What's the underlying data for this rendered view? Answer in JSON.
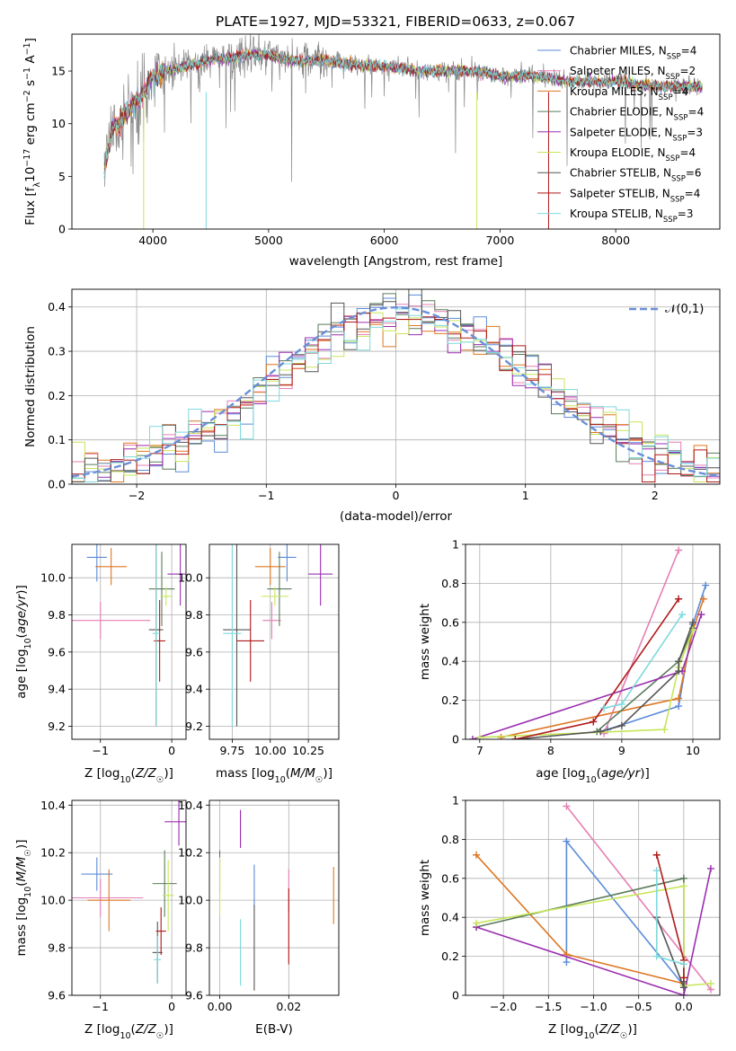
{
  "figure_title": "PLATE=1927, MJD=53321, FIBERID=0633, z=0.067",
  "colors": {
    "Chabrier MILES": "#5b8bd9",
    "Salpeter MILES": "#e67fb4",
    "Kroupa MILES": "#dd7722",
    "Chabrier ELODIE": "#5a7a5a",
    "Salpeter ELODIE": "#9a2fb0",
    "Kroupa ELODIE": "#c7e65a",
    "Chabrier STELIB": "#555555",
    "Salpeter STELIB": "#b01818",
    "Kroupa STELIB": "#7fd9dd",
    "data": "#888888",
    "normal": "#6a8fd8"
  },
  "chart_data": [
    {
      "id": "spectrum",
      "type": "line",
      "xlabel": "wavelength [Angstrom, rest frame]",
      "ylabel": "Flux [f_λ10^-17 erg cm^-2 s^-1 A^-1]",
      "xlim": [
        3300,
        8900
      ],
      "ylim": [
        0,
        18.5
      ],
      "xticks": [
        4000,
        5000,
        6000,
        7000,
        8000
      ],
      "yticks": [
        0,
        5,
        10,
        15
      ],
      "legend_position": "right",
      "legend": [
        {
          "name": "Chabrier MILES",
          "nssp": "4"
        },
        {
          "name": "Salpeter MILES",
          "nssp": "2"
        },
        {
          "name": "Kroupa MILES",
          "nssp": "4"
        },
        {
          "name": "Chabrier ELODIE",
          "nssp": "4"
        },
        {
          "name": "Salpeter ELODIE",
          "nssp": "3"
        },
        {
          "name": "Kroupa ELODIE",
          "nssp": "4"
        },
        {
          "name": "Chabrier STELIB",
          "nssp": "6"
        },
        {
          "name": "Salpeter STELIB",
          "nssp": "4"
        },
        {
          "name": "Kroupa STELIB",
          "nssp": "3"
        }
      ],
      "continuum": {
        "x": [
          3580,
          3650,
          3700,
          3800,
          3900,
          4000,
          4100,
          4300,
          4500,
          4800,
          5000,
          5200,
          5500,
          5800,
          6000,
          6300,
          6500,
          6800,
          7000,
          7300,
          7600,
          8000,
          8400,
          8700
        ],
        "y": [
          5.5,
          9.5,
          10,
          11.5,
          12.5,
          14.5,
          15,
          15.5,
          16,
          16.5,
          16.5,
          16,
          16,
          15.5,
          15.5,
          15,
          15,
          15,
          14.5,
          14.5,
          14,
          14,
          13.5,
          13.5
        ]
      },
      "model_range": [
        3580,
        8750
      ]
    },
    {
      "id": "residuals",
      "type": "line",
      "xlabel": "(data-model)/error",
      "ylabel": "Normed distribution",
      "xlim": [
        -2.5,
        2.5
      ],
      "ylim": [
        0,
        0.44
      ],
      "xticks": [
        -2,
        -1,
        0,
        1,
        2
      ],
      "yticks": [
        0.0,
        0.1,
        0.2,
        0.3,
        0.4
      ],
      "legend": "𝒩(0,1)",
      "legend_position": "top-right",
      "normal": {
        "mu": 0,
        "sigma": 1
      },
      "bin_width": 0.1,
      "hist_center_offset": 0.1,
      "hist_extra_width": 1.1
    },
    {
      "id": "age-vs-Z",
      "type": "scatter",
      "xlabel": "Z [log10(Z/Z☉)]",
      "ylabel": "age  [log10(age/yr)]",
      "xlim": [
        -1.4,
        0.2
      ],
      "ylim": [
        9.13,
        10.18
      ],
      "xticks": [
        -1,
        0
      ],
      "yticks": [
        9.2,
        9.4,
        9.6,
        9.8,
        10.0
      ],
      "points": [
        {
          "model": "Chabrier MILES",
          "x": -1.05,
          "y": 10.11,
          "xerr": 0.14,
          "yerr": 0.13
        },
        {
          "model": "Salpeter MILES",
          "x": -1.0,
          "y": 9.77,
          "xerr": 0.7,
          "yerr": 0.1
        },
        {
          "model": "Kroupa MILES",
          "x": -0.85,
          "y": 10.06,
          "xerr": 0.22,
          "yerr": 0.1
        },
        {
          "model": "Chabrier ELODIE",
          "x": -0.14,
          "y": 9.94,
          "xerr": 0.18,
          "yerr": 0.2
        },
        {
          "model": "Salpeter ELODIE",
          "x": 0.12,
          "y": 10.02,
          "xerr": 0.18,
          "yerr": 0.17
        },
        {
          "model": "Kroupa ELODIE",
          "x": -0.08,
          "y": 9.9,
          "xerr": 0.08,
          "yerr": 0.05
        },
        {
          "model": "Chabrier STELIB",
          "x": -0.22,
          "y": 9.72,
          "xerr": 0.1,
          "yerr": 0.52
        },
        {
          "model": "Salpeter STELIB",
          "x": -0.17,
          "y": 9.66,
          "xerr": 0.08,
          "yerr": 0.22
        },
        {
          "model": "Kroupa STELIB",
          "x": -0.22,
          "y": 9.7,
          "xerr": 0.05,
          "yerr": 0.5
        }
      ]
    },
    {
      "id": "age-vs-mass",
      "type": "scatter",
      "xlabel": "mass [log10(M/M☉)]",
      "ylabel": "",
      "xlim": [
        9.6,
        10.45
      ],
      "ylim": [
        9.13,
        10.18
      ],
      "xticks": [
        9.75,
        10.0,
        10.25
      ],
      "xticklabels": [
        "9.75",
        "10.00",
        "10.25"
      ],
      "yticks": [
        9.2,
        9.4,
        9.6,
        9.8,
        10.0
      ],
      "points": [
        {
          "model": "Chabrier MILES",
          "x": 10.11,
          "y": 10.11,
          "xerr": 0.06,
          "yerr": 0.13
        },
        {
          "model": "Salpeter MILES",
          "x": 10.01,
          "y": 9.77,
          "xerr": 0.06,
          "yerr": 0.1
        },
        {
          "model": "Kroupa MILES",
          "x": 10.0,
          "y": 10.06,
          "xerr": 0.1,
          "yerr": 0.1
        },
        {
          "model": "Chabrier ELODIE",
          "x": 10.06,
          "y": 9.94,
          "xerr": 0.08,
          "yerr": 0.2
        },
        {
          "model": "Salpeter ELODIE",
          "x": 10.33,
          "y": 10.02,
          "xerr": 0.08,
          "yerr": 0.17
        },
        {
          "model": "Kroupa ELODIE",
          "x": 10.03,
          "y": 9.9,
          "xerr": 0.09,
          "yerr": 0.05
        },
        {
          "model": "Chabrier STELIB",
          "x": 9.78,
          "y": 9.72,
          "xerr": 0.09,
          "yerr": 0.52
        },
        {
          "model": "Salpeter STELIB",
          "x": 9.87,
          "y": 9.66,
          "xerr": 0.09,
          "yerr": 0.22
        },
        {
          "model": "Kroupa STELIB",
          "x": 9.75,
          "y": 9.7,
          "xerr": 0.06,
          "yerr": 0.5
        }
      ]
    },
    {
      "id": "weight-vs-age",
      "type": "line",
      "xlabel": "age  [log10(age/yr)]",
      "ylabel": "mass weight",
      "xlim": [
        6.8,
        10.38
      ],
      "ylim": [
        0,
        1.0
      ],
      "xticks": [
        7,
        8,
        9,
        10
      ],
      "yticks": [
        0.0,
        0.2,
        0.4,
        0.6,
        0.8,
        1.0
      ],
      "series": [
        {
          "model": "Chabrier MILES",
          "x": [
            8.8,
            9.8,
            10.0,
            10.18
          ],
          "y": [
            0.05,
            0.17,
            0.59,
            0.79
          ]
        },
        {
          "model": "Salpeter MILES",
          "x": [
            8.75,
            9.8
          ],
          "y": [
            0.03,
            0.97
          ]
        },
        {
          "model": "Kroupa MILES",
          "x": [
            7.3,
            9.8,
            10.0,
            10.15
          ],
          "y": [
            0.01,
            0.21,
            0.56,
            0.72
          ]
        },
        {
          "model": "Chabrier ELODIE",
          "x": [
            8.65,
            9.8,
            10.0
          ],
          "y": [
            0.04,
            0.4,
            0.57
          ]
        },
        {
          "model": "Salpeter ELODIE",
          "x": [
            6.9,
            9.85,
            10.12
          ],
          "y": [
            0.0,
            0.35,
            0.64
          ]
        },
        {
          "model": "Kroupa ELODIE",
          "x": [
            7.0,
            9.6,
            9.8,
            10.0
          ],
          "y": [
            0.01,
            0.05,
            0.37,
            0.56
          ]
        },
        {
          "model": "Chabrier STELIB",
          "x": [
            7.5,
            8.7,
            9.0,
            9.8,
            9.8,
            10.0
          ],
          "y": [
            0.0,
            0.04,
            0.07,
            0.35,
            0.4,
            0.6
          ]
        },
        {
          "model": "Salpeter STELIB",
          "x": [
            7.5,
            8.6,
            9.8
          ],
          "y": [
            0.0,
            0.09,
            0.72
          ]
        },
        {
          "model": "Kroupa STELIB",
          "x": [
            8.75,
            9.0,
            9.85
          ],
          "y": [
            0.16,
            0.18,
            0.64
          ]
        }
      ]
    },
    {
      "id": "mass-vs-Z",
      "type": "scatter",
      "xlabel": "Z [log10(Z/Z☉)]",
      "ylabel": "mass [log10(M/M☉)]",
      "xlim": [
        -1.4,
        0.2
      ],
      "ylim": [
        9.6,
        10.42
      ],
      "xticks": [
        -1,
        0
      ],
      "yticks": [
        9.6,
        9.8,
        10.0,
        10.2,
        10.4
      ],
      "points": [
        {
          "model": "Chabrier MILES",
          "x": -1.05,
          "y": 10.11,
          "xerr": 0.22,
          "yerr": 0.07
        },
        {
          "model": "Salpeter MILES",
          "x": -1.0,
          "y": 10.01,
          "xerr": 0.6,
          "yerr": 0.08
        },
        {
          "model": "Kroupa MILES",
          "x": -0.88,
          "y": 10.0,
          "xerr": 0.3,
          "yerr": 0.13
        },
        {
          "model": "Chabrier ELODIE",
          "x": -0.1,
          "y": 10.07,
          "xerr": 0.17,
          "yerr": 0.14
        },
        {
          "model": "Salpeter ELODIE",
          "x": 0.1,
          "y": 10.33,
          "xerr": 0.2,
          "yerr": 0.1
        },
        {
          "model": "Kroupa ELODIE",
          "x": -0.05,
          "y": 10.02,
          "xerr": 0.08,
          "yerr": 0.15
        },
        {
          "model": "Chabrier STELIB",
          "x": -0.2,
          "y": 9.78,
          "xerr": 0.07,
          "yerr": 0.13
        },
        {
          "model": "Salpeter STELIB",
          "x": -0.15,
          "y": 9.87,
          "xerr": 0.07,
          "yerr": 0.1
        },
        {
          "model": "Kroupa STELIB",
          "x": -0.2,
          "y": 9.75,
          "xerr": 0.05,
          "yerr": 0.1
        }
      ]
    },
    {
      "id": "mass-vs-ebv",
      "type": "scatter",
      "xlabel": "E(B-V)",
      "ylabel": "",
      "xlim": [
        -0.003,
        0.0345
      ],
      "ylim": [
        9.6,
        10.42
      ],
      "xticks": [
        0.0,
        0.02
      ],
      "xticklabels": [
        "0.00",
        "0.02"
      ],
      "yticks": [
        9.6,
        9.8,
        10.0,
        10.2,
        10.4
      ],
      "points": [
        {
          "model": "Chabrier MILES",
          "x": 0.01,
          "y": 10.06,
          "yerr": 0.09
        },
        {
          "model": "Salpeter MILES",
          "x": 0.02,
          "y": 10.04,
          "yerr": 0.09
        },
        {
          "model": "Kroupa MILES",
          "x": 0.033,
          "y": 10.02,
          "yerr": 0.12
        },
        {
          "model": "Chabrier ELODIE",
          "x": 0.0,
          "y": 10.12,
          "yerr": 0.09
        },
        {
          "model": "Salpeter ELODIE",
          "x": 0.006,
          "y": 10.3,
          "yerr": 0.08
        },
        {
          "model": "Kroupa ELODIE",
          "x": 0.0,
          "y": 10.06,
          "yerr": 0.12
        },
        {
          "model": "Chabrier STELIB",
          "x": 0.01,
          "y": 9.8,
          "yerr": 0.18
        },
        {
          "model": "Salpeter STELIB",
          "x": 0.02,
          "y": 9.89,
          "yerr": 0.16
        },
        {
          "model": "Kroupa STELIB",
          "x": 0.006,
          "y": 9.78,
          "yerr": 0.14
        }
      ]
    },
    {
      "id": "weight-vs-Z",
      "type": "line",
      "xlabel": "Z [log10(Z/Z☉)]",
      "ylabel": "mass weight",
      "xlim": [
        -2.42,
        0.4
      ],
      "ylim": [
        0,
        1.0
      ],
      "xticks": [
        -2.0,
        -1.5,
        -1.0,
        -0.5,
        0.0
      ],
      "xticklabels": [
        "−2.0",
        "−1.5",
        "−1.0",
        "−0.5",
        "0.0"
      ],
      "yticks": [
        0.0,
        0.2,
        0.4,
        0.6,
        0.8,
        1.0
      ],
      "series": [
        {
          "model": "Chabrier MILES",
          "x": [
            -1.3,
            -1.3,
            0.0
          ],
          "y": [
            0.17,
            0.79,
            0.05
          ]
        },
        {
          "model": "Salpeter MILES",
          "x": [
            -1.3,
            0.3
          ],
          "y": [
            0.97,
            0.03
          ]
        },
        {
          "model": "Kroupa MILES",
          "x": [
            -2.3,
            -1.3,
            0.0
          ],
          "y": [
            0.72,
            0.21,
            0.06
          ]
        },
        {
          "model": "Chabrier ELODIE",
          "x": [
            -2.3,
            0.0,
            0.0
          ],
          "y": [
            0.35,
            0.6,
            0.05
          ]
        },
        {
          "model": "Salpeter ELODIE",
          "x": [
            -2.3,
            0.0,
            0.3
          ],
          "y": [
            0.35,
            0.0,
            0.65
          ]
        },
        {
          "model": "Kroupa ELODIE",
          "x": [
            -2.3,
            0.0,
            0.0,
            0.3
          ],
          "y": [
            0.37,
            0.56,
            0.05,
            0.06
          ]
        },
        {
          "model": "Chabrier STELIB",
          "x": [
            -0.3,
            0.0,
            0.0
          ],
          "y": [
            0.4,
            0.04,
            0.07
          ]
        },
        {
          "model": "Salpeter STELIB",
          "x": [
            -0.3,
            0.0,
            0.0
          ],
          "y": [
            0.72,
            0.18,
            0.09
          ]
        },
        {
          "model": "Kroupa STELIB",
          "x": [
            -0.3,
            -0.3,
            0.0
          ],
          "y": [
            0.64,
            0.2,
            0.16
          ]
        }
      ]
    }
  ]
}
